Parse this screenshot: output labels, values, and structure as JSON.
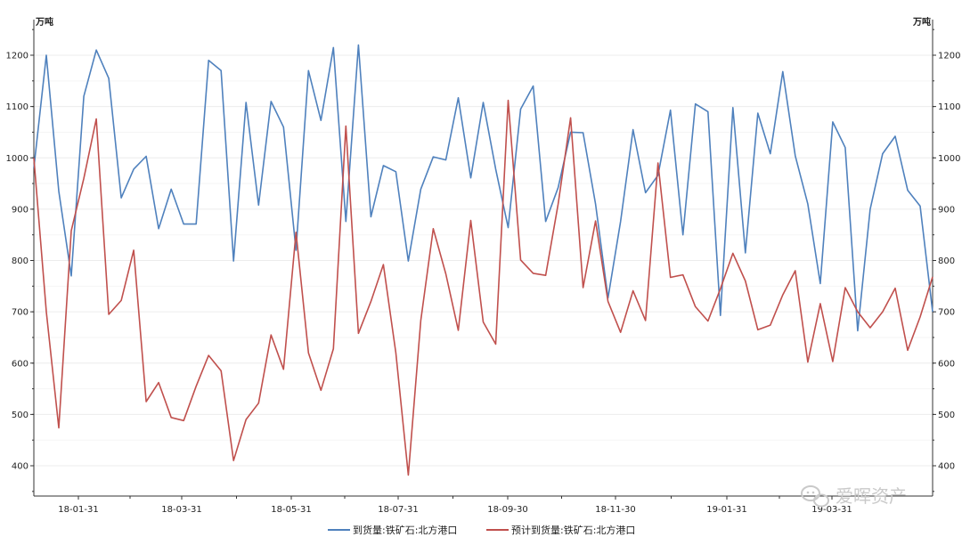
{
  "chart_data": {
    "type": "line",
    "units": {
      "left": "万吨",
      "right": "万吨"
    },
    "ylim": [
      350,
      1250
    ],
    "yticks": [
      400,
      500,
      600,
      700,
      800,
      900,
      1000,
      1100,
      1200
    ],
    "xtick_labels": [
      "18-01-31",
      "18-03-31",
      "18-05-31",
      "18-07-31",
      "18-09-30",
      "18-11-30",
      "19-01-31",
      "19-03-31"
    ],
    "grid": true,
    "legend_position": "bottom",
    "series": [
      {
        "name": "到货量:铁矿石:北方港口",
        "color": "#4f81bd",
        "values": [
          980,
          1200,
          935,
          770,
          1120,
          1210,
          1155,
          922,
          978,
          1003,
          862,
          939,
          871,
          871,
          1190,
          1170,
          799,
          1108,
          908,
          1110,
          1060,
          820,
          1170,
          1073,
          1215,
          876,
          1220,
          885,
          985,
          973,
          799,
          939,
          1002,
          996,
          1117,
          961,
          1108,
          978,
          864,
          1095,
          1140,
          876,
          942,
          1050,
          1049,
          910,
          727,
          876,
          1055,
          932,
          966,
          1093,
          850,
          1105,
          1090,
          693,
          1098,
          815,
          1087,
          1008,
          1168,
          1004,
          910,
          755,
          1070,
          1020,
          663,
          900,
          1008,
          1042,
          937,
          906,
          700
        ]
      },
      {
        "name": "预计到货量:铁矿石:北方港口",
        "color": "#c0504d",
        "values": [
          1000,
          700,
          474,
          858,
          960,
          1076,
          695,
          722,
          820,
          525,
          562,
          494,
          488,
          555,
          615,
          585,
          410,
          490,
          522,
          655,
          588,
          855,
          620,
          547,
          628,
          1062,
          658,
          720,
          792,
          620,
          382,
          683,
          862,
          774,
          664,
          878,
          680,
          637,
          1112,
          801,
          775,
          771,
          910,
          1078,
          747,
          877,
          720,
          660,
          741,
          683,
          990,
          767,
          772,
          710,
          682,
          745,
          814,
          760,
          665,
          674,
          733,
          780,
          602,
          716,
          603,
          747,
          700,
          669,
          700,
          746,
          625,
          690,
          768
        ]
      }
    ]
  },
  "legend": {
    "series_1": "到货量:铁矿石:北方港口",
    "series_2": "预计到货量:铁矿石:北方港口"
  },
  "watermark": {
    "text": "爱晖资产"
  }
}
